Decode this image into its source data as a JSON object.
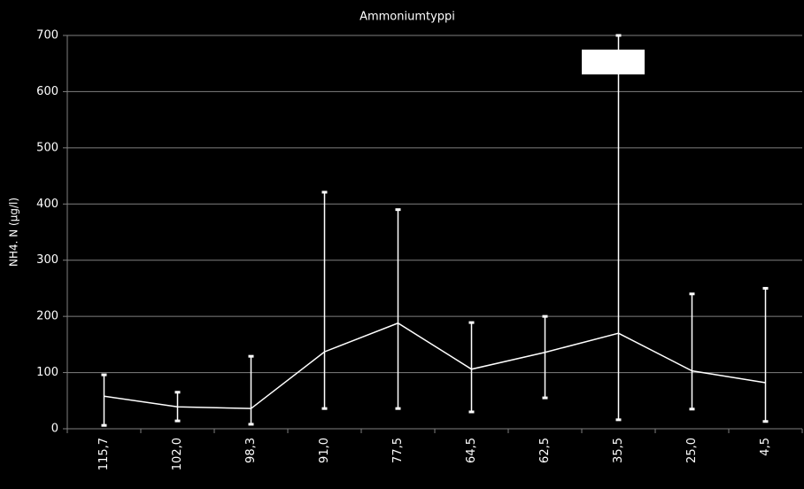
{
  "chart_data": {
    "type": "line",
    "title": "Ammoniumtyppi",
    "y_label": "NH4. N (µg/l)",
    "categories": [
      "115,7",
      "102,0",
      "98,3",
      "91,0",
      "77,5",
      "64,5",
      "62,5",
      "35,5",
      "25,0",
      "4,5"
    ],
    "values": [
      58,
      39,
      36,
      137,
      188,
      106,
      136,
      170,
      103,
      82
    ],
    "low": [
      6,
      14,
      8,
      36,
      36,
      30,
      55,
      16,
      35,
      13
    ],
    "high": [
      96,
      65,
      129,
      421,
      390,
      189,
      200,
      700,
      240,
      250
    ],
    "color": "#ffffff",
    "ylim": [
      0,
      700
    ],
    "yticks": [
      0,
      100,
      200,
      300,
      400,
      500,
      600,
      700
    ],
    "grid": true
  }
}
